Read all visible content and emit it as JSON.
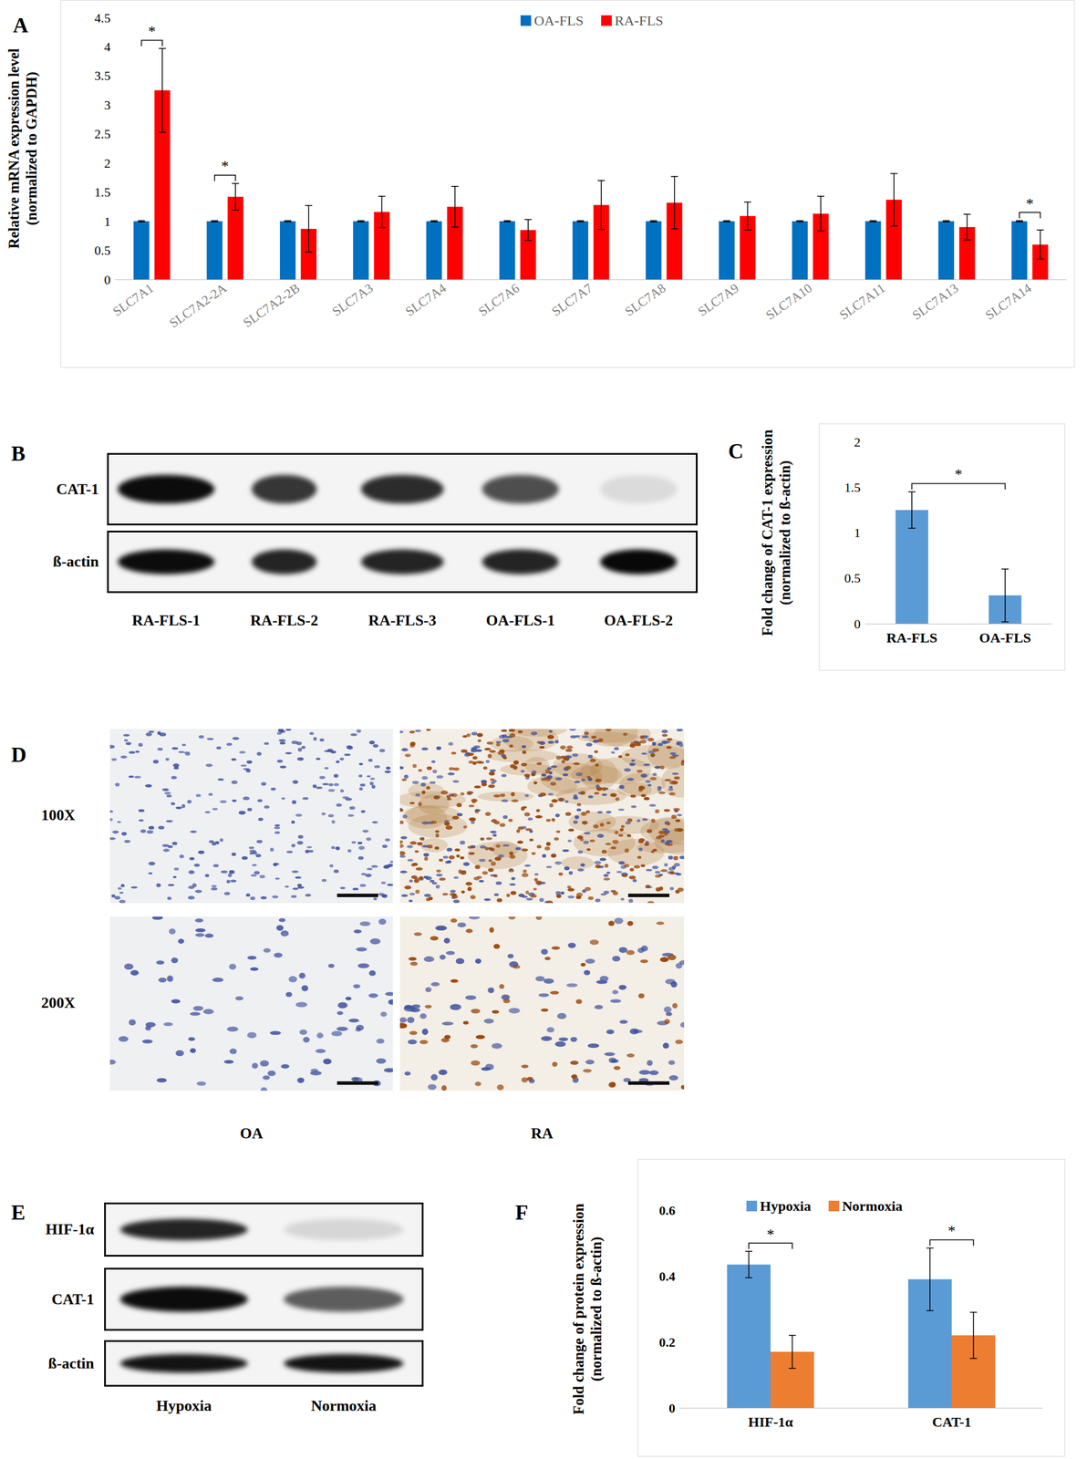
{
  "chart_data": [
    {
      "panel": "A",
      "type": "bar",
      "y_label": "Relative mRNA expression level\n(normalized to GAPDH)",
      "categories": [
        "SLC7A1",
        "SLC7A2-2A",
        "SLC7A2-2B",
        "SLC7A3",
        "SLC7A4",
        "SLC7A6",
        "SLC7A7",
        "SLC7A8",
        "SLC7A9",
        "SLC7A10",
        "SLC7A11",
        "SLC7A13",
        "SLC7A14"
      ],
      "series": [
        {
          "name": "OA-FLS",
          "color": "#0070c0",
          "values": [
            1,
            1,
            1,
            1,
            1,
            1,
            1,
            1,
            1,
            1,
            1,
            1,
            1
          ],
          "errors": [
            0.01,
            0.01,
            0.01,
            0.01,
            0.01,
            0.01,
            0.01,
            0.01,
            0.01,
            0.01,
            0.01,
            0.01,
            0.01
          ]
        },
        {
          "name": "RA-FLS",
          "color": "#ff0000",
          "values": [
            3.25,
            1.42,
            0.87,
            1.16,
            1.25,
            0.85,
            1.28,
            1.32,
            1.09,
            1.13,
            1.37,
            0.9,
            0.6
          ],
          "errors": [
            0.72,
            0.23,
            0.4,
            0.27,
            0.35,
            0.18,
            0.42,
            0.45,
            0.24,
            0.3,
            0.45,
            0.22,
            0.25
          ]
        }
      ],
      "ylim": [
        0,
        4.5
      ],
      "yticks": [
        0,
        0.5,
        1,
        1.5,
        2,
        2.5,
        3,
        3.5,
        4,
        4.5
      ],
      "grid": false,
      "legend": "top",
      "annotations": [
        {
          "category": "SLC7A1",
          "text": "*"
        },
        {
          "category": "SLC7A2-2A",
          "text": "*"
        },
        {
          "category": "SLC7A14",
          "text": "*"
        }
      ]
    },
    {
      "panel": "C",
      "type": "bar",
      "y_label": "Fold change of CAT-1 expression\n(normalized to ß-actin)",
      "categories": [
        "RA-FLS",
        "OA-FLS"
      ],
      "values": [
        1.25,
        0.31
      ],
      "errors": [
        0.2,
        0.29
      ],
      "color": "#5b9bd5",
      "ylim": [
        0,
        2
      ],
      "yticks": [
        0,
        0.5,
        1,
        1.5,
        2
      ],
      "grid": false,
      "annotations": [
        {
          "between": [
            "RA-FLS",
            "OA-FLS"
          ],
          "text": "*"
        }
      ]
    },
    {
      "panel": "F",
      "type": "bar",
      "y_label": "Fold change of protein expression\n(normalized to ß-actin)",
      "categories": [
        "HIF-1α",
        "CAT-1"
      ],
      "series": [
        {
          "name": "Hypoxia",
          "color": "#5b9bd5",
          "values": [
            0.435,
            0.39
          ],
          "errors": [
            0.04,
            0.095
          ]
        },
        {
          "name": "Normoxia",
          "color": "#ed7d31",
          "values": [
            0.17,
            0.22
          ],
          "errors": [
            0.05,
            0.07
          ]
        }
      ],
      "ylim": [
        0,
        0.6
      ],
      "yticks": [
        0,
        0.2,
        0.4,
        0.6
      ],
      "grid": false,
      "legend": "top",
      "annotations": [
        {
          "category": "HIF-1α",
          "text": "*"
        },
        {
          "category": "CAT-1",
          "text": "*"
        }
      ]
    }
  ],
  "blots": [
    {
      "panel": "B",
      "rows": [
        "CAT-1",
        "ß-actin"
      ],
      "lanes": [
        "RA-FLS-1",
        "RA-FLS-2",
        "RA-FLS-3",
        "OA-FLS-1",
        "OA-FLS-2"
      ]
    },
    {
      "panel": "E",
      "rows": [
        "HIF-1α",
        "CAT-1",
        "ß-actin"
      ],
      "lanes": [
        "Hypoxia",
        "Normoxia"
      ]
    }
  ],
  "histology": {
    "panel": "D",
    "rows": [
      "100X",
      "200X"
    ],
    "columns": [
      "OA",
      "RA"
    ]
  }
}
